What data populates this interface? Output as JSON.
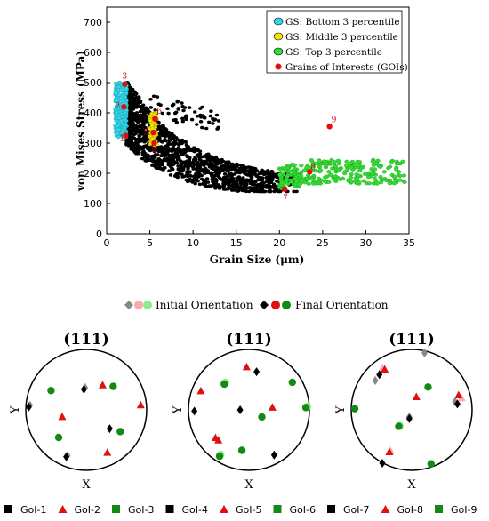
{
  "chart_data": [
    {
      "type": "scatter",
      "xlabel": "Grain Size (μm)",
      "ylabel": "von Mises Stress (MPa)",
      "xlim": [
        0,
        35
      ],
      "ylim": [
        0,
        750
      ],
      "xticks": [
        0,
        5,
        10,
        15,
        20,
        25,
        30,
        35
      ],
      "yticks": [
        0,
        100,
        200,
        300,
        400,
        500,
        600,
        700
      ],
      "legend_position": "top-right",
      "legend": [
        {
          "label": "GS: Bottom 3 percentile",
          "color": "#33d6e8"
        },
        {
          "label": "GS: Middle 3 percentile",
          "color": "#f2e600"
        },
        {
          "label": "GS: Top 3 percentile",
          "color": "#33dd33"
        },
        {
          "label": "Grains of Interests (GOIs)",
          "color": "#e01010"
        }
      ],
      "series": [
        {
          "name": "GS: Bottom 3 percentile",
          "color": "#33d6e8",
          "x_range": [
            1.0,
            2.3
          ],
          "y_range": [
            320,
            500
          ]
        },
        {
          "name": "GS: Middle 3 percentile",
          "color": "#f2e600",
          "x_range": [
            5.0,
            5.8
          ],
          "y_range": [
            290,
            400
          ]
        },
        {
          "name": "GS: Top 3 percentile",
          "color": "#33dd33",
          "x_range": [
            20.0,
            34.5
          ],
          "y_range": [
            150,
            330
          ]
        },
        {
          "name": "",
          "color": "#000000",
          "x_range": [
            2.3,
            22.0
          ],
          "y_range": [
            140,
            500
          ]
        }
      ],
      "gois": [
        {
          "label": "1",
          "x": 2.2,
          "y": 325
        },
        {
          "label": "2",
          "x": 2.0,
          "y": 420
        },
        {
          "label": "3",
          "x": 2.1,
          "y": 495
        },
        {
          "label": "4",
          "x": 5.5,
          "y": 300
        },
        {
          "label": "5",
          "x": 5.4,
          "y": 335
        },
        {
          "label": "6",
          "x": 5.6,
          "y": 380
        },
        {
          "label": "7",
          "x": 20.6,
          "y": 148
        },
        {
          "label": "8",
          "x": 23.5,
          "y": 205
        },
        {
          "label": "9",
          "x": 25.8,
          "y": 355
        }
      ]
    },
    {
      "type": "scatter",
      "title": "(111)",
      "xlabel": "X",
      "ylabel": "Y",
      "orientation_legend": {
        "initial": "Initial Orientation",
        "final": "Final Orientation"
      },
      "goi_legend": [
        {
          "label": "GoI-1",
          "marker": "square",
          "color": "#000000"
        },
        {
          "label": "GoI-2",
          "marker": "triangle",
          "color": "#e01010"
        },
        {
          "label": "GoI-3",
          "marker": "circle",
          "color": "#138a13"
        },
        {
          "label": "GoI-4",
          "marker": "square",
          "color": "#000000"
        },
        {
          "label": "GoI-5",
          "marker": "triangle",
          "color": "#e01010"
        },
        {
          "label": "GoI-6",
          "marker": "square",
          "color": "#138a13"
        },
        {
          "label": "GoI-7",
          "marker": "square",
          "color": "#000000"
        },
        {
          "label": "GoI-8",
          "marker": "triangle",
          "color": "#e01010"
        },
        {
          "label": "GoI-9",
          "marker": "circle",
          "color": "#138a13"
        }
      ],
      "pole_figures": [
        {
          "title": "(111)",
          "points": [
            {
              "shape": "diamond",
              "color": "#888888",
              "x": -0.96,
              "y": 0.08
            },
            {
              "shape": "diamond",
              "color": "#000000",
              "x": -0.98,
              "y": 0.05
            },
            {
              "shape": "circle",
              "color": "#138a13",
              "x": -0.6,
              "y": 0.33
            },
            {
              "shape": "diamond",
              "color": "#888888",
              "x": -0.02,
              "y": 0.38
            },
            {
              "shape": "diamond",
              "color": "#000000",
              "x": -0.04,
              "y": 0.35
            },
            {
              "shape": "triangle",
              "color": "#e01010",
              "x": 0.28,
              "y": 0.42
            },
            {
              "shape": "circle",
              "color": "#138a13",
              "x": 0.46,
              "y": 0.4
            },
            {
              "shape": "triangle",
              "color": "#e01010",
              "x": 0.93,
              "y": 0.08
            },
            {
              "shape": "triangle",
              "color": "#e01010",
              "x": -0.41,
              "y": -0.12
            },
            {
              "shape": "diamond",
              "color": "#000000",
              "x": 0.4,
              "y": -0.32
            },
            {
              "shape": "circle",
              "color": "#138a13",
              "x": 0.58,
              "y": -0.37
            },
            {
              "shape": "circle",
              "color": "#138a13",
              "x": -0.47,
              "y": -0.47
            },
            {
              "shape": "triangle",
              "color": "#e01010",
              "x": 0.36,
              "y": -0.73
            },
            {
              "shape": "diamond",
              "color": "#888888",
              "x": -0.32,
              "y": -0.78
            },
            {
              "shape": "diamond",
              "color": "#000000",
              "x": -0.34,
              "y": -0.8
            }
          ]
        },
        {
          "title": "(111)",
          "points": [
            {
              "shape": "triangle",
              "color": "#e01010",
              "x": -0.82,
              "y": 0.32
            },
            {
              "shape": "circle",
              "color": "#88ee88",
              "x": -0.4,
              "y": 0.47
            },
            {
              "shape": "circle",
              "color": "#138a13",
              "x": -0.42,
              "y": 0.44
            },
            {
              "shape": "triangle",
              "color": "#e01010",
              "x": -0.04,
              "y": 0.73
            },
            {
              "shape": "diamond",
              "color": "#000000",
              "x": 0.13,
              "y": 0.65
            },
            {
              "shape": "circle",
              "color": "#138a13",
              "x": 0.74,
              "y": 0.47
            },
            {
              "shape": "triangle",
              "color": "#e01010",
              "x": 0.4,
              "y": 0.04
            },
            {
              "shape": "circle",
              "color": "#88ee88",
              "x": 1.0,
              "y": 0.06
            },
            {
              "shape": "circle",
              "color": "#138a13",
              "x": 0.97,
              "y": 0.04
            },
            {
              "shape": "diamond",
              "color": "#000000",
              "x": -0.93,
              "y": -0.02
            },
            {
              "shape": "diamond",
              "color": "#000000",
              "x": -0.15,
              "y": 0.0
            },
            {
              "shape": "circle",
              "color": "#138a13",
              "x": 0.22,
              "y": -0.12
            },
            {
              "shape": "triangle",
              "color": "#e01010",
              "x": -0.52,
              "y": -0.52
            },
            {
              "shape": "triangle",
              "color": "#e01010",
              "x": -0.57,
              "y": -0.48
            },
            {
              "shape": "circle",
              "color": "#138a13",
              "x": -0.12,
              "y": -0.69
            },
            {
              "shape": "circle",
              "color": "#88ee88",
              "x": -0.48,
              "y": -0.76
            },
            {
              "shape": "circle",
              "color": "#138a13",
              "x": -0.5,
              "y": -0.79
            },
            {
              "shape": "diamond",
              "color": "#000000",
              "x": 0.43,
              "y": -0.77
            }
          ]
        },
        {
          "title": "(111)",
          "points": [
            {
              "shape": "diamond",
              "color": "#888888",
              "x": 0.22,
              "y": 0.97
            },
            {
              "shape": "triangle",
              "color": "#ffaaaa",
              "x": -0.5,
              "y": 0.71
            },
            {
              "shape": "triangle",
              "color": "#e01010",
              "x": -0.46,
              "y": 0.69
            },
            {
              "shape": "diamond",
              "color": "#000000",
              "x": -0.55,
              "y": 0.6
            },
            {
              "shape": "diamond",
              "color": "#888888",
              "x": -0.62,
              "y": 0.5
            },
            {
              "shape": "triangle",
              "color": "#e01010",
              "x": 0.08,
              "y": 0.22
            },
            {
              "shape": "circle",
              "color": "#138a13",
              "x": 0.28,
              "y": 0.39
            },
            {
              "shape": "triangle",
              "color": "#ffaaaa",
              "x": 0.85,
              "y": 0.2
            },
            {
              "shape": "triangle",
              "color": "#e01010",
              "x": 0.8,
              "y": 0.25
            },
            {
              "shape": "diamond",
              "color": "#888888",
              "x": 0.74,
              "y": 0.14
            },
            {
              "shape": "diamond",
              "color": "#000000",
              "x": 0.78,
              "y": 0.1
            },
            {
              "shape": "circle",
              "color": "#138a13",
              "x": -0.97,
              "y": 0.02
            },
            {
              "shape": "diamond",
              "color": "#888888",
              "x": -0.04,
              "y": -0.12
            },
            {
              "shape": "diamond",
              "color": "#000000",
              "x": -0.04,
              "y": -0.15
            },
            {
              "shape": "circle",
              "color": "#88ee88",
              "x": -0.2,
              "y": -0.27
            },
            {
              "shape": "circle",
              "color": "#138a13",
              "x": -0.22,
              "y": -0.28
            },
            {
              "shape": "triangle",
              "color": "#ffaaaa",
              "x": -0.36,
              "y": -0.7
            },
            {
              "shape": "triangle",
              "color": "#e01010",
              "x": -0.38,
              "y": -0.72
            },
            {
              "shape": "circle",
              "color": "#138a13",
              "x": 0.33,
              "y": -0.92
            },
            {
              "shape": "diamond",
              "color": "#000000",
              "x": -0.5,
              "y": -0.91
            }
          ]
        }
      ]
    }
  ]
}
